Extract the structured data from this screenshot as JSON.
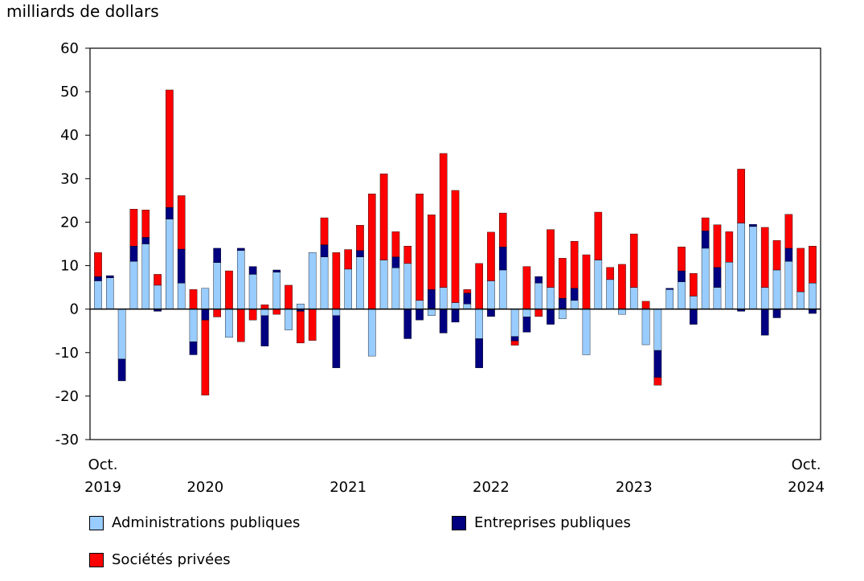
{
  "chart_data": {
    "type": "bar",
    "stacked": true,
    "ylabel": "milliards de dollars",
    "ylim": [
      -30,
      60
    ],
    "yticks": [
      60,
      50,
      40,
      30,
      20,
      10,
      0,
      -10,
      -20,
      -30
    ],
    "x_tick_labels": [
      {
        "month_index": 0,
        "line1": "Oct.",
        "line2": "2019"
      },
      {
        "month_index": 9,
        "line1": "",
        "line2": "2020"
      },
      {
        "month_index": 21,
        "line1": "",
        "line2": "2021"
      },
      {
        "month_index": 33,
        "line1": "",
        "line2": "2022"
      },
      {
        "month_index": 45,
        "line1": "",
        "line2": "2023"
      },
      {
        "month_index": 60,
        "line1": "Oct.",
        "line2": "2024"
      }
    ],
    "months": 61,
    "series": [
      {
        "name": "Administrations publiques",
        "color": "#99ccff",
        "values": [
          6.5,
          7.2,
          -11.5,
          11,
          15,
          5.5,
          20.7,
          6,
          -7.5,
          4.8,
          10.7,
          -6.5,
          13.5,
          8,
          -1.5,
          8.5,
          -4.8,
          1.2,
          13,
          12,
          -1.5,
          9.2,
          12,
          -10.8,
          11.3,
          9.5,
          10.5,
          2,
          -1.5,
          5,
          1.5,
          1.2,
          -6.8,
          6.5,
          9,
          -6.3,
          -1.8,
          6,
          5,
          -2.2,
          2,
          -10.5,
          11.3,
          6.8,
          -1.2,
          5,
          -8.2,
          -9.5,
          4.5,
          6.3,
          3,
          14,
          5,
          10.8,
          19.8,
          19,
          5,
          9,
          11,
          4,
          6
        ]
      },
      {
        "name": "Entreprises publiques",
        "color": "#000080",
        "values": [
          1,
          0.5,
          -5,
          3.5,
          1.5,
          -0.5,
          2.7,
          7.8,
          -3,
          -2.5,
          3.3,
          0,
          0.5,
          1.8,
          -7,
          0.5,
          0,
          -0.5,
          0,
          2.8,
          -12,
          0,
          1.5,
          0,
          0,
          2.5,
          -6.8,
          -2.5,
          4.5,
          -5.5,
          -3,
          2.5,
          -6.7,
          -1.7,
          5.3,
          -1,
          -3.5,
          1.5,
          -3.5,
          2.5,
          2.8,
          0,
          0,
          0,
          0,
          0,
          0,
          -6.2,
          0.3,
          2.5,
          -3.5,
          4,
          4.6,
          0,
          -0.5,
          0.5,
          -6,
          -2,
          3,
          0,
          -1
        ]
      },
      {
        "name": "Sociétés privées",
        "color": "#ff0000",
        "values": [
          5.5,
          0,
          0,
          8.5,
          6.3,
          2.5,
          27,
          12.3,
          4.5,
          -17.3,
          -1.8,
          8.8,
          -7.5,
          -2.5,
          1,
          -1.2,
          5.5,
          -7.3,
          -7.2,
          6.2,
          13,
          4.5,
          5.8,
          26.5,
          19.8,
          5.8,
          4,
          24.5,
          17.2,
          30.8,
          25.8,
          0.8,
          10.5,
          11.2,
          7.8,
          -1,
          9.8,
          -1.7,
          13.3,
          9.2,
          10.8,
          12.5,
          11,
          2.8,
          10.3,
          12.3,
          1.8,
          -1.8,
          0,
          5.5,
          5.2,
          3,
          9.8,
          7,
          12.4,
          0,
          13.8,
          6.8,
          7.8,
          10,
          8.5
        ]
      }
    ]
  }
}
